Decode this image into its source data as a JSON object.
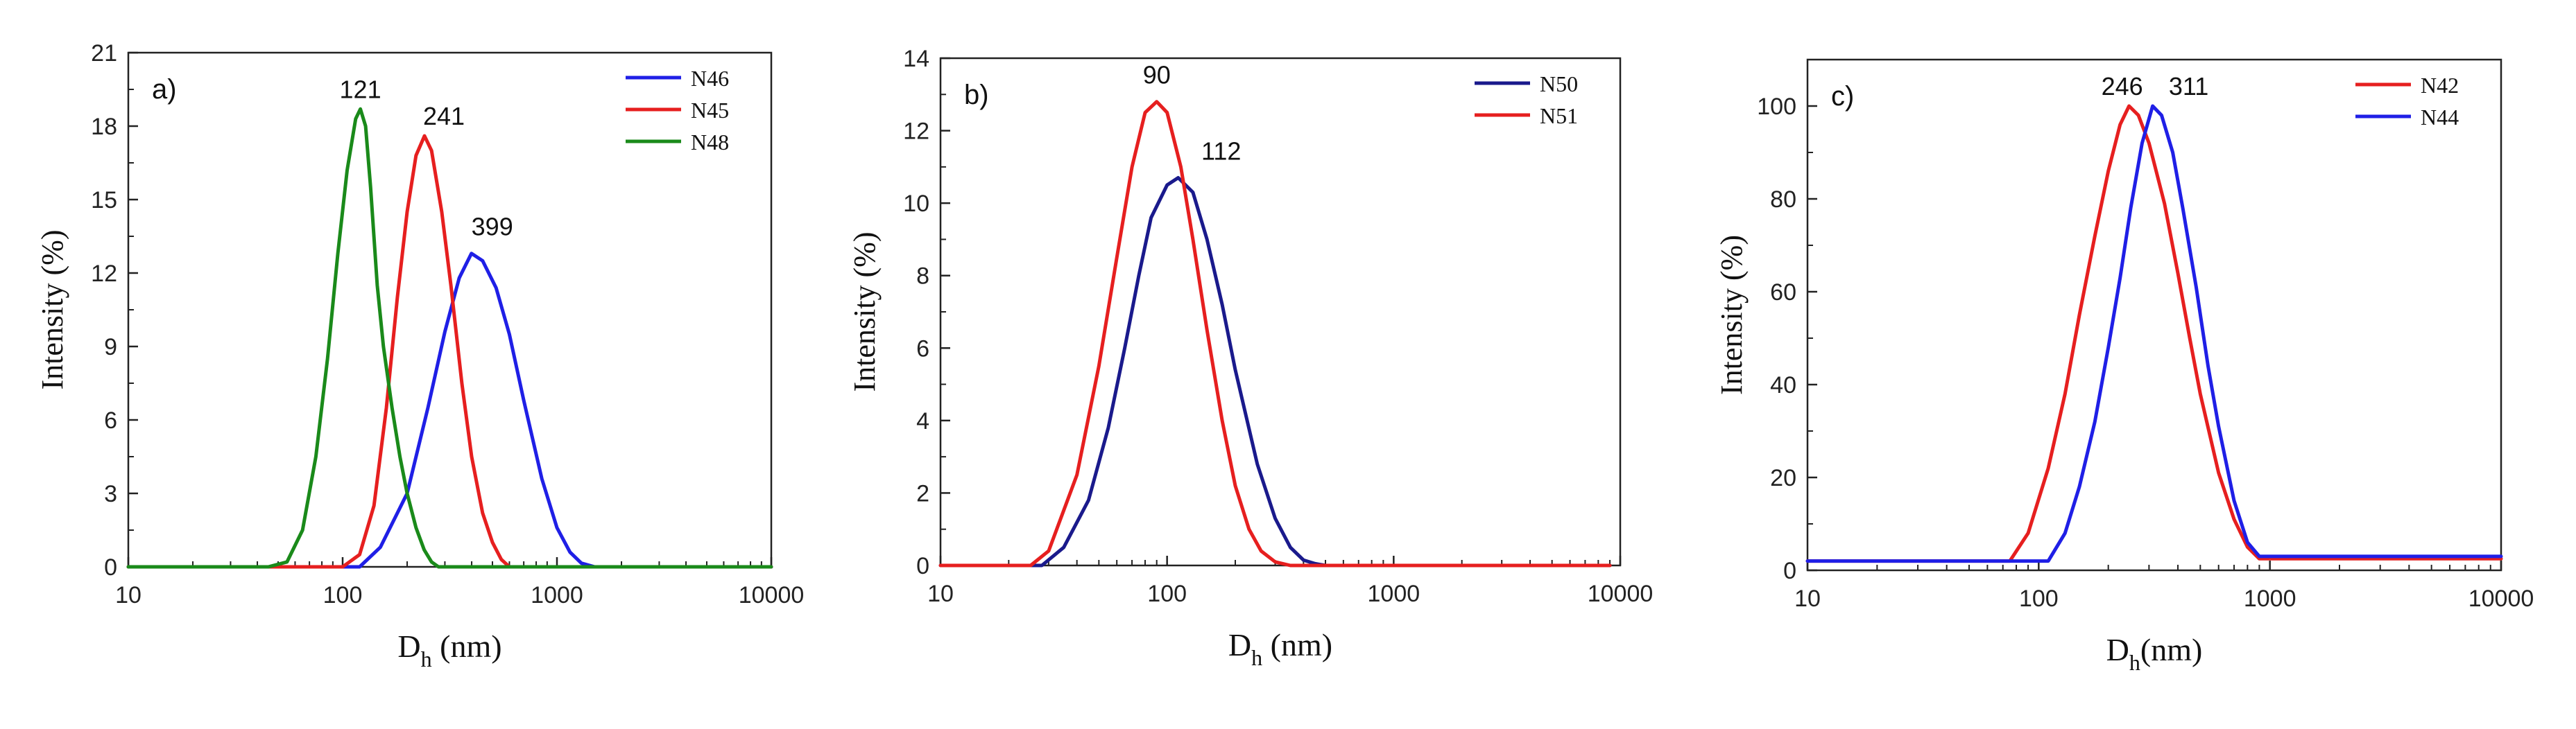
{
  "figure": {
    "background": "#ffffff"
  },
  "chart_data": [
    {
      "type": "line",
      "panel_label": "a)",
      "xlabel": "Dh (nm)",
      "xlabel_main": "D",
      "xlabel_sub": "h",
      "xlabel_rest": " (nm)",
      "ylabel": "Intensity (%)",
      "xscale": "log",
      "xlim": [
        10,
        10000
      ],
      "xticks": [
        10,
        100,
        1000,
        10000
      ],
      "xtick_labels": [
        "10",
        "100",
        "1000",
        "10000"
      ],
      "ylim": [
        0,
        21
      ],
      "yticks": [
        0,
        3,
        6,
        9,
        12,
        15,
        18,
        21
      ],
      "ytick_labels": [
        "0",
        "3",
        "6",
        "9",
        "12",
        "15",
        "18",
        "21"
      ],
      "grid": false,
      "legend": "top-right",
      "series": [
        {
          "name": "N46",
          "color": "#1f1fe6",
          "x": [
            10,
            50,
            120,
            150,
            200,
            250,
            300,
            350,
            399,
            450,
            520,
            600,
            700,
            850,
            1000,
            1150,
            1300,
            1500,
            10000
          ],
          "y": [
            0,
            0,
            0,
            0.8,
            3.0,
            6.5,
            9.6,
            11.8,
            12.8,
            12.5,
            11.4,
            9.5,
            6.8,
            3.6,
            1.6,
            0.6,
            0.15,
            0,
            0
          ]
        },
        {
          "name": "N45",
          "color": "#e61f1f",
          "x": [
            10,
            80,
            100,
            120,
            140,
            160,
            180,
            200,
            220,
            241,
            260,
            290,
            320,
            360,
            400,
            450,
            500,
            550,
            600,
            10000
          ],
          "y": [
            0,
            0,
            0,
            0.5,
            2.5,
            6.5,
            11.0,
            14.5,
            16.8,
            17.6,
            17.0,
            14.5,
            11.5,
            7.5,
            4.5,
            2.2,
            1.0,
            0.3,
            0,
            0
          ]
        },
        {
          "name": "N48",
          "color": "#1a8a1a",
          "x": [
            10,
            45,
            55,
            65,
            75,
            85,
            95,
            105,
            115,
            121,
            128,
            135,
            145,
            155,
            170,
            185,
            200,
            220,
            240,
            260,
            280,
            10000
          ],
          "y": [
            0,
            0,
            0.2,
            1.5,
            4.5,
            8.5,
            12.8,
            16.2,
            18.3,
            18.7,
            18.0,
            15.5,
            11.5,
            9.0,
            6.5,
            4.5,
            3.0,
            1.6,
            0.7,
            0.2,
            0,
            0
          ]
        }
      ],
      "annotations": [
        {
          "text": "121",
          "x": 121,
          "y": 18.7
        },
        {
          "text": "241",
          "x": 241,
          "y": 17.6
        },
        {
          "text": "399",
          "x": 399,
          "y": 12.8
        }
      ]
    },
    {
      "type": "line",
      "panel_label": "b)",
      "xlabel": "Dh (nm)",
      "xlabel_main": "D",
      "xlabel_sub": "h",
      "xlabel_rest": " (nm)",
      "ylabel": "Intensity (%)",
      "xscale": "log",
      "xlim": [
        10,
        10000
      ],
      "xticks": [
        10,
        100,
        1000,
        10000
      ],
      "xtick_labels": [
        "10",
        "100",
        "1000",
        "10000"
      ],
      "ylim": [
        0,
        14
      ],
      "yticks": [
        0,
        2,
        4,
        6,
        8,
        10,
        12,
        14
      ],
      "ytick_labels": [
        "0",
        "2",
        "4",
        "6",
        "8",
        "10",
        "12",
        "14"
      ],
      "grid": false,
      "legend": "top-right",
      "series": [
        {
          "name": "N50",
          "color": "#1a1a8c",
          "x": [
            10,
            28,
            35,
            45,
            55,
            65,
            75,
            85,
            100,
            112,
            130,
            150,
            175,
            200,
            250,
            300,
            350,
            400,
            450,
            500,
            9000
          ],
          "y": [
            0,
            0,
            0.5,
            1.8,
            3.8,
            6.0,
            8.0,
            9.6,
            10.5,
            10.7,
            10.3,
            9.0,
            7.2,
            5.4,
            2.8,
            1.3,
            0.5,
            0.15,
            0.05,
            0,
            0
          ]
        },
        {
          "name": "N51",
          "color": "#e61f1f",
          "x": [
            10,
            25,
            30,
            40,
            50,
            60,
            70,
            80,
            90,
            100,
            115,
            130,
            150,
            175,
            200,
            230,
            260,
            300,
            350,
            9000
          ],
          "y": [
            0,
            0,
            0.4,
            2.5,
            5.5,
            8.5,
            11.0,
            12.5,
            12.8,
            12.5,
            11.0,
            9.0,
            6.5,
            4.0,
            2.2,
            1.0,
            0.4,
            0.1,
            0,
            0
          ]
        }
      ],
      "annotations": [
        {
          "text": "90",
          "x": 90,
          "y": 12.8
        },
        {
          "text": "112",
          "x": 112,
          "y": 10.7
        }
      ]
    },
    {
      "type": "line",
      "panel_label": "c)",
      "xlabel": "Dh(nm)",
      "xlabel_main": "D",
      "xlabel_sub": "h",
      "xlabel_rest": "(nm)",
      "ylabel": "Intensity (%)",
      "xscale": "log",
      "xlim": [
        10,
        10000
      ],
      "xticks": [
        10,
        100,
        1000,
        10000
      ],
      "xtick_labels": [
        "10",
        "100",
        "1000",
        "10000"
      ],
      "ylim": [
        0,
        110
      ],
      "yticks": [
        0,
        20,
        40,
        60,
        80,
        100
      ],
      "ytick_labels": [
        "0",
        "20",
        "40",
        "60",
        "80",
        "100"
      ],
      "grid": false,
      "legend": "top-right",
      "series": [
        {
          "name": "N42",
          "color": "#e61f1f",
          "x": [
            10,
            75,
            90,
            110,
            130,
            150,
            175,
            200,
            225,
            246,
            270,
            300,
            350,
            400,
            450,
            500,
            600,
            700,
            800,
            900,
            10000
          ],
          "y": [
            2,
            2,
            8,
            22,
            38,
            55,
            72,
            86,
            96,
            100,
            98,
            92,
            79,
            64,
            50,
            38,
            21,
            11,
            5,
            2.5,
            2.5
          ]
        },
        {
          "name": "N44",
          "color": "#1f1fe6",
          "x": [
            10,
            110,
            130,
            150,
            175,
            200,
            225,
            250,
            280,
            311,
            340,
            380,
            420,
            480,
            540,
            600,
            700,
            800,
            900,
            1000,
            10000
          ],
          "y": [
            2,
            2,
            8,
            18,
            32,
            48,
            63,
            78,
            92,
            100,
            98,
            90,
            78,
            61,
            44,
            31,
            15,
            6,
            3,
            3,
            3
          ]
        }
      ],
      "annotations": [
        {
          "text": "246",
          "x": 246,
          "y": 100
        },
        {
          "text": "311",
          "x": 311,
          "y": 100
        }
      ]
    }
  ]
}
